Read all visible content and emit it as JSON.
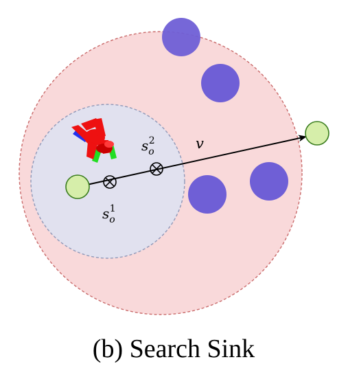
{
  "labels": {
    "s1_base": "s",
    "s1_sub": "o",
    "s1_sup": "1",
    "s2_base": "s",
    "s2_sub": "o",
    "s2_sup": "2",
    "v": "v"
  },
  "caption": "(b) Search Sink",
  "colors": {
    "outer_fill": "#f9d9da",
    "outer_stroke": "#c96a6a",
    "inner_fill": "#e1e1ef",
    "inner_stroke": "#8f98b8",
    "obstacle": "#6f5fd6",
    "node_fill": "#d6eeaa",
    "node_stroke": "#3a7d1e",
    "robot_body": "#ee1111",
    "robot_leg_blue": "#2233ee",
    "robot_leg_green": "#22dd22"
  },
  "icons": {
    "waypoint": "circle-cross-icon",
    "agent": "ant-robot-icon"
  }
}
